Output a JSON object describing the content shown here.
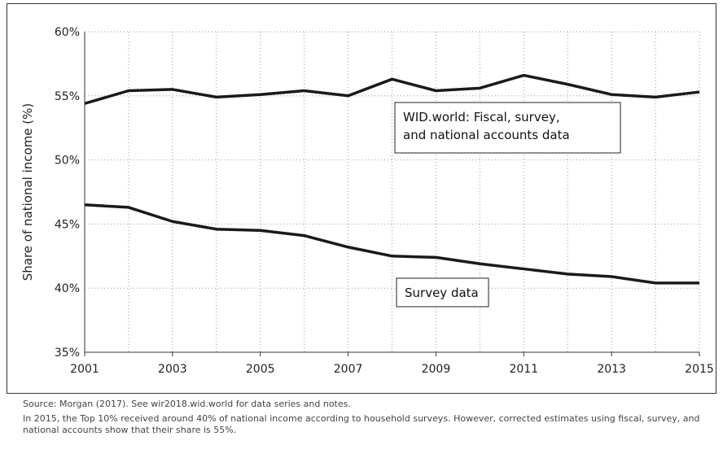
{
  "chart_data": {
    "type": "line",
    "ylabel": "Share of national income (%)",
    "xlabel": "",
    "xlim": [
      2001,
      2015
    ],
    "ylim": [
      35,
      60
    ],
    "x_ticks": [
      "2001",
      "2003",
      "2005",
      "2007",
      "2009",
      "2011",
      "2013",
      "2015"
    ],
    "y_ticks": [
      "35%",
      "40%",
      "45%",
      "50%",
      "55%",
      "60%"
    ],
    "grid": true,
    "x": [
      2001,
      2002,
      2003,
      2004,
      2005,
      2006,
      2007,
      2008,
      2009,
      2010,
      2011,
      2012,
      2013,
      2014,
      2015
    ],
    "series": [
      {
        "annotation": [
          "WID.world: Fiscal, survey,",
          "and national accounts data"
        ],
        "values": [
          54.4,
          55.4,
          55.5,
          54.9,
          55.1,
          55.4,
          55.0,
          56.3,
          55.4,
          55.6,
          56.6,
          55.9,
          55.1,
          54.9,
          55.3
        ]
      },
      {
        "annotation": [
          "Survey data"
        ],
        "values": [
          46.5,
          46.3,
          45.2,
          44.6,
          44.5,
          44.1,
          43.2,
          42.5,
          42.4,
          41.9,
          41.5,
          41.1,
          40.9,
          40.4,
          40.4
        ]
      }
    ]
  },
  "notes": {
    "source": "Source: Morgan (2017). See wir2018.wid.world for data series and notes.",
    "description": "In 2015, the Top 10% received around 40% of national income according to household surveys. However, corrected estimates using fiscal, survey, and national accounts show that their share is 55%."
  }
}
